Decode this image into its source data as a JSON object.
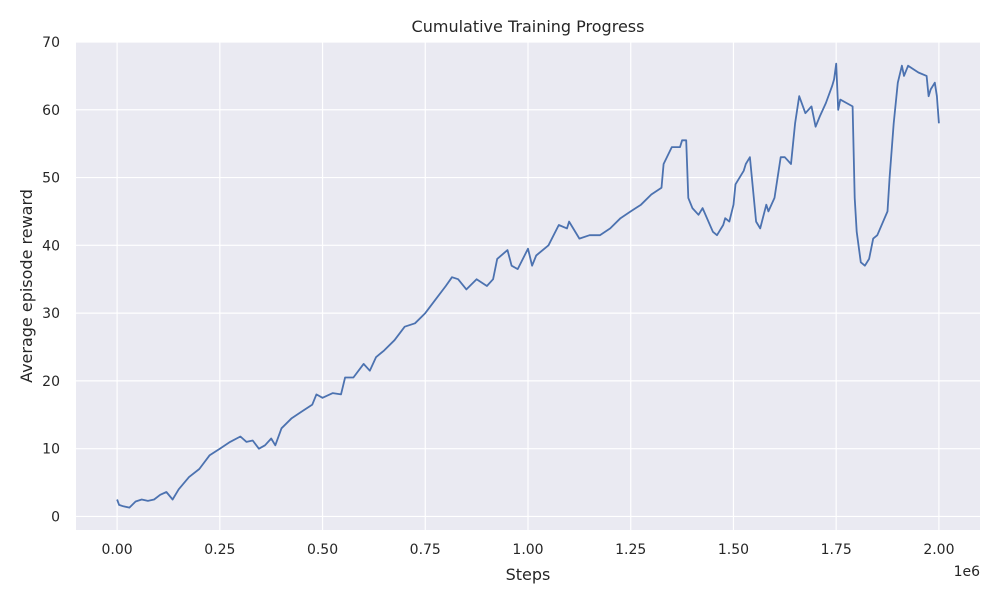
{
  "chart_data": {
    "type": "line",
    "title": "Cumulative Training Progress",
    "xlabel": "Steps",
    "ylabel": "Average episode reward",
    "x_offset_label": "1e6",
    "xlim": [
      -100000,
      2100000
    ],
    "ylim": [
      -2,
      70
    ],
    "x_ticks": [
      0,
      250000,
      500000,
      750000,
      1000000,
      1250000,
      1500000,
      1750000,
      2000000
    ],
    "x_tick_labels": [
      "0.00",
      "0.25",
      "0.50",
      "0.75",
      "1.00",
      "1.25",
      "1.50",
      "1.75",
      "2.00"
    ],
    "y_ticks": [
      0,
      10,
      20,
      30,
      40,
      50,
      60,
      70
    ],
    "y_tick_labels": [
      "0",
      "10",
      "20",
      "30",
      "40",
      "50",
      "60",
      "70"
    ],
    "grid": true,
    "background": "#eaeaf2",
    "grid_color": "#ffffff",
    "line_color": "#4c72b0",
    "series": [
      {
        "x": [
          0,
          5000,
          15000,
          30000,
          45000,
          60000,
          75000,
          90000,
          105000,
          120000,
          135000,
          150000,
          175000,
          200000,
          225000,
          250000,
          275000,
          300000,
          315000,
          330000,
          345000,
          360000,
          375000,
          385000,
          400000,
          425000,
          450000,
          475000,
          485000,
          500000,
          525000,
          545000,
          555000,
          575000,
          600000,
          615000,
          630000,
          650000,
          675000,
          700000,
          725000,
          750000,
          775000,
          800000,
          815000,
          830000,
          850000,
          875000,
          900000,
          915000,
          925000,
          950000,
          960000,
          975000,
          1000000,
          1010000,
          1020000,
          1050000,
          1075000,
          1095000,
          1100000,
          1125000,
          1150000,
          1175000,
          1200000,
          1225000,
          1250000,
          1275000,
          1300000,
          1325000,
          1330000,
          1350000,
          1370000,
          1375000,
          1385000,
          1390000,
          1400000,
          1415000,
          1425000,
          1450000,
          1460000,
          1475000,
          1480000,
          1490000,
          1500000,
          1505000,
          1525000,
          1530000,
          1540000,
          1555000,
          1565000,
          1580000,
          1585000,
          1600000,
          1615000,
          1625000,
          1640000,
          1650000,
          1660000,
          1675000,
          1690000,
          1700000,
          1710000,
          1725000,
          1740000,
          1745000,
          1750000,
          1755000,
          1760000,
          1775000,
          1790000,
          1795000,
          1800000,
          1810000,
          1820000,
          1830000,
          1840000,
          1850000,
          1875000,
          1880000,
          1890000,
          1900000,
          1910000,
          1915000,
          1925000,
          1950000,
          1970000,
          1975000,
          1980000,
          1990000,
          1995000,
          2000000
        ],
        "y": [
          2.5,
          1.7,
          1.5,
          1.3,
          2.2,
          2.5,
          2.3,
          2.5,
          3.2,
          3.6,
          2.5,
          4.0,
          5.8,
          7.0,
          9.0,
          10.0,
          11.0,
          11.8,
          11.0,
          11.2,
          10.0,
          10.5,
          11.5,
          10.5,
          13.0,
          14.5,
          15.5,
          16.5,
          18.0,
          17.5,
          18.2,
          18.0,
          20.5,
          20.5,
          22.5,
          21.5,
          23.5,
          24.5,
          26.0,
          28.0,
          28.5,
          30.0,
          32.0,
          34.0,
          35.3,
          35.0,
          33.5,
          35.0,
          34.0,
          35.0,
          38.0,
          39.3,
          37.0,
          36.5,
          39.5,
          37.0,
          38.5,
          40.0,
          43.0,
          42.5,
          43.5,
          41.0,
          41.5,
          41.5,
          42.5,
          44.0,
          45.0,
          46.0,
          47.5,
          48.5,
          52.0,
          54.5,
          54.5,
          55.5,
          55.5,
          47.0,
          45.5,
          44.5,
          45.5,
          42.0,
          41.5,
          43.0,
          44.0,
          43.5,
          46.0,
          49.0,
          51.0,
          52.0,
          53.0,
          43.5,
          42.5,
          46.0,
          45.0,
          47.0,
          53.0,
          53.0,
          52.0,
          58.0,
          62.0,
          59.5,
          60.5,
          57.5,
          59.0,
          61.0,
          63.5,
          64.5,
          66.8,
          60.0,
          61.5,
          61.0,
          60.5,
          47.0,
          42.0,
          37.5,
          37.0,
          38.0,
          41.0,
          41.5,
          45.0,
          50.0,
          58.0,
          64.0,
          66.5,
          65.0,
          66.5,
          65.5,
          65.0,
          62.0,
          63.0,
          64.0,
          62.0,
          58.0
        ]
      }
    ]
  }
}
